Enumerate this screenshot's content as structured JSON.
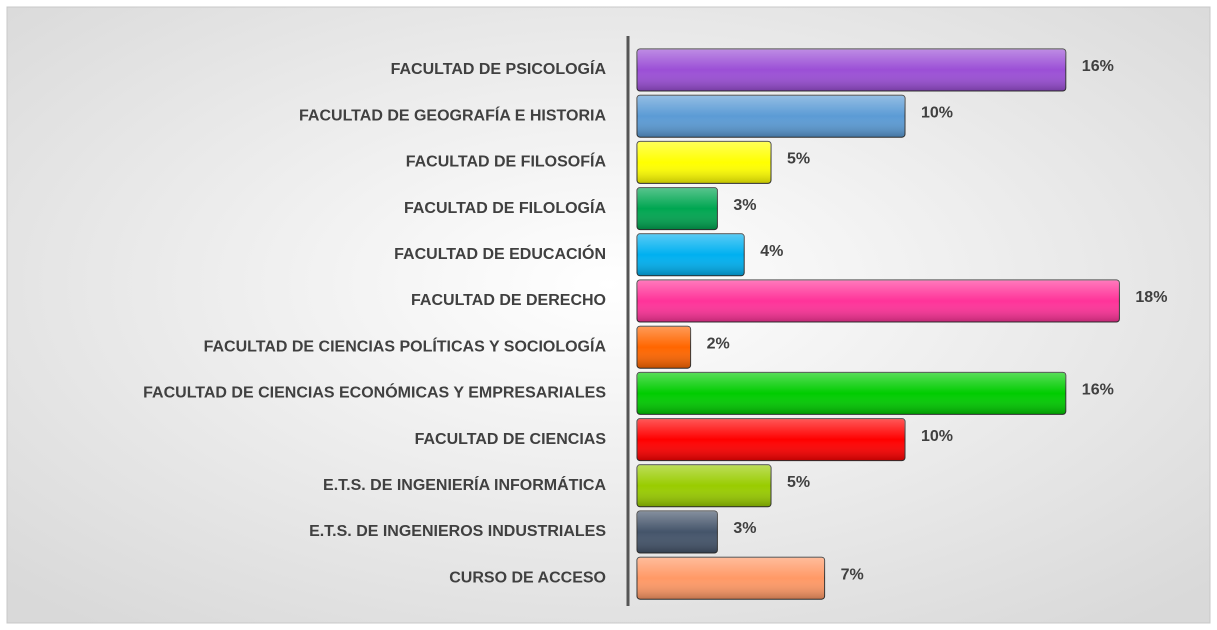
{
  "chart_data": {
    "type": "bar",
    "orientation": "horizontal",
    "categories": [
      "FACULTAD DE PSICOLOGÍA",
      "FACULTAD DE GEOGRAFÍA E HISTORIA",
      "FACULTAD DE FILOSOFÍA",
      "FACULTAD DE FILOLOGÍA",
      "FACULTAD DE EDUCACIÓN",
      "FACULTAD DE DERECHO",
      "FACULTAD DE CIENCIAS POLÍTICAS Y SOCIOLOGÍA",
      "FACULTAD DE CIENCIAS ECONÓMICAS Y EMPRESARIALES",
      "FACULTAD DE CIENCIAS",
      "E.T.S. DE INGENIERÍA INFORMÁTICA",
      "E.T.S. DE INGENIEROS INDUSTRIALES",
      "CURSO DE ACCESO"
    ],
    "values": [
      16,
      10,
      5,
      3,
      4,
      18,
      2,
      16,
      10,
      5,
      3,
      7
    ],
    "value_labels": [
      "16%",
      "10%",
      "5%",
      "3%",
      "4%",
      "18%",
      "2%",
      "16%",
      "10%",
      "5%",
      "3%",
      "7%"
    ],
    "colors": [
      "#9b4fd6",
      "#5b9bd5",
      "#ffff00",
      "#00a651",
      "#00b0f0",
      "#ff3399",
      "#ff6600",
      "#00cc00",
      "#ff0000",
      "#99cc00",
      "#44546a",
      "#ff9966"
    ],
    "xlim": [
      0,
      20
    ]
  }
}
